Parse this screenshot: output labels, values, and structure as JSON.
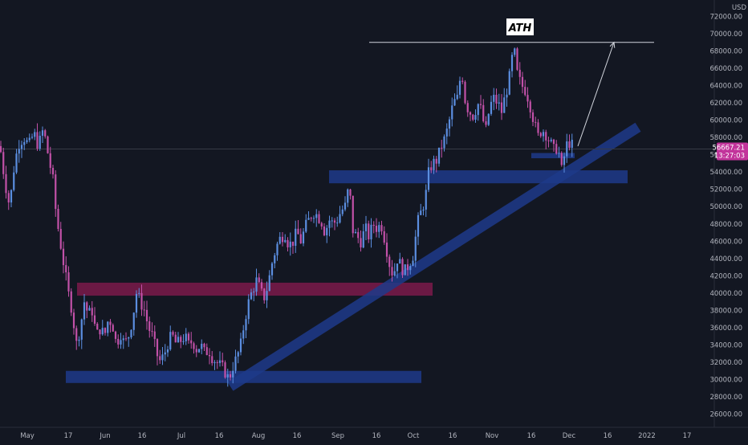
{
  "chart_data": {
    "type": "candlestick",
    "unit_label": "USD",
    "x_ticks": [
      "May",
      "17",
      "Jun",
      "16",
      "Jul",
      "16",
      "Aug",
      "16",
      "Sep",
      "16",
      "Oct",
      "16",
      "Nov",
      "16",
      "Dec",
      "16",
      "2022",
      "17"
    ],
    "y_ticks": [
      26000,
      28000,
      30000,
      32000,
      34000,
      36000,
      38000,
      40000,
      42000,
      44000,
      46000,
      48000,
      50000,
      52000,
      54000,
      56000,
      58000,
      60000,
      62000,
      64000,
      66000,
      68000,
      70000,
      72000
    ],
    "y_tick_labels": [
      "26000.00",
      "28000.00",
      "30000.00",
      "32000.00",
      "34000.00",
      "36000.00",
      "38000.00",
      "40000.00",
      "42000.00",
      "44000.00",
      "46000.00",
      "48000.00",
      "50000.00",
      "52000.00",
      "54000.00",
      "56000.00",
      "58000.00",
      "60000.00",
      "62000.00",
      "64000.00",
      "66000.00",
      "68000.00",
      "70000.00",
      "72000.00"
    ],
    "ylim": [
      24000,
      73500
    ],
    "current_price": 56667.21,
    "current_price_label": "56667.21",
    "countdown_label": "13:27:03",
    "annotation": "ATH",
    "close_path": [
      [
        0,
        57000
      ],
      [
        6,
        53000
      ],
      [
        12,
        50000
      ],
      [
        18,
        55000
      ],
      [
        24,
        57500
      ],
      [
        30,
        58000
      ],
      [
        36,
        57000
      ],
      [
        42,
        58500
      ],
      [
        48,
        57000
      ],
      [
        54,
        59000
      ],
      [
        60,
        56000
      ],
      [
        66,
        53000
      ],
      [
        70,
        49000
      ],
      [
        75,
        46000
      ],
      [
        80,
        43000
      ],
      [
        85,
        40000
      ],
      [
        90,
        38000
      ],
      [
        95,
        34000
      ],
      [
        100,
        36000
      ],
      [
        105,
        39000
      ],
      [
        110,
        37500
      ],
      [
        115,
        38000
      ],
      [
        120,
        35000
      ],
      [
        125,
        36000
      ],
      [
        130,
        35000
      ],
      [
        135,
        37000
      ],
      [
        140,
        36500
      ],
      [
        145,
        34000
      ],
      [
        150,
        35500
      ],
      [
        155,
        34000
      ],
      [
        160,
        35000
      ],
      [
        165,
        37000
      ],
      [
        170,
        40000
      ],
      [
        175,
        39000
      ],
      [
        180,
        38000
      ],
      [
        185,
        36000
      ],
      [
        190,
        35000
      ],
      [
        195,
        33000
      ],
      [
        200,
        32000
      ],
      [
        205,
        33000
      ],
      [
        210,
        34500
      ],
      [
        215,
        35000
      ],
      [
        220,
        34000
      ],
      [
        225,
        34500
      ],
      [
        230,
        35000
      ],
      [
        235,
        34000
      ],
      [
        240,
        34500
      ],
      [
        245,
        33500
      ],
      [
        250,
        34000
      ],
      [
        255,
        33000
      ],
      [
        260,
        33500
      ],
      [
        265,
        32500
      ],
      [
        270,
        32000
      ],
      [
        275,
        31500
      ],
      [
        280,
        31000
      ],
      [
        285,
        30000
      ],
      [
        290,
        31500
      ],
      [
        295,
        32500
      ],
      [
        300,
        34000
      ],
      [
        305,
        37000
      ],
      [
        310,
        39000
      ],
      [
        315,
        40500
      ],
      [
        320,
        41500
      ],
      [
        325,
        40000
      ],
      [
        330,
        39500
      ],
      [
        335,
        41500
      ],
      [
        340,
        44000
      ],
      [
        345,
        45500
      ],
      [
        350,
        46500
      ],
      [
        355,
        47000
      ],
      [
        360,
        45500
      ],
      [
        365,
        46000
      ],
      [
        370,
        47000
      ],
      [
        375,
        46000
      ],
      [
        380,
        47500
      ],
      [
        385,
        48500
      ],
      [
        390,
        49500
      ],
      [
        395,
        49000
      ],
      [
        400,
        48500
      ],
      [
        405,
        47000
      ],
      [
        410,
        48500
      ],
      [
        415,
        48000
      ],
      [
        420,
        48500
      ],
      [
        425,
        49500
      ],
      [
        430,
        50000
      ],
      [
        435,
        52500
      ],
      [
        440,
        47000
      ],
      [
        445,
        46500
      ],
      [
        450,
        46000
      ],
      [
        455,
        47500
      ],
      [
        460,
        46500
      ],
      [
        465,
        48000
      ],
      [
        470,
        47500
      ],
      [
        475,
        48000
      ],
      [
        480,
        46000
      ],
      [
        485,
        43500
      ],
      [
        490,
        42000
      ],
      [
        495,
        44000
      ],
      [
        500,
        43000
      ],
      [
        505,
        42500
      ],
      [
        510,
        43500
      ],
      [
        515,
        44500
      ],
      [
        520,
        48000
      ],
      [
        525,
        49500
      ],
      [
        530,
        51000
      ],
      [
        535,
        54500
      ],
      [
        540,
        55000
      ],
      [
        545,
        55500
      ],
      [
        550,
        57000
      ],
      [
        555,
        58000
      ],
      [
        560,
        60000
      ],
      [
        565,
        62000
      ],
      [
        570,
        62500
      ],
      [
        575,
        66000
      ],
      [
        580,
        62000
      ],
      [
        585,
        61000
      ],
      [
        590,
        60500
      ],
      [
        595,
        62000
      ],
      [
        600,
        61000
      ],
      [
        605,
        58500
      ],
      [
        610,
        61500
      ],
      [
        615,
        62500
      ],
      [
        620,
        62000
      ],
      [
        625,
        61000
      ],
      [
        630,
        63000
      ],
      [
        635,
        65000
      ],
      [
        640,
        68500
      ],
      [
        645,
        65000
      ],
      [
        650,
        64000
      ],
      [
        655,
        63500
      ],
      [
        660,
        62000
      ],
      [
        665,
        60000
      ],
      [
        670,
        58000
      ],
      [
        675,
        59000
      ],
      [
        680,
        58500
      ],
      [
        685,
        57500
      ],
      [
        690,
        56500
      ],
      [
        695,
        57000
      ],
      [
        700,
        54000
      ],
      [
        705,
        57000
      ],
      [
        710,
        57500
      ],
      [
        715,
        56667
      ]
    ],
    "zones": [
      {
        "kind": "support",
        "t_start": 82,
        "t_end": 525,
        "low": 29600,
        "high": 31000,
        "color": "#1e3a8a"
      },
      {
        "kind": "resistance",
        "t_start": 96,
        "t_end": 539,
        "low": 39700,
        "high": 41200,
        "color": "#7b1a4a"
      },
      {
        "kind": "resistance",
        "t_start": 410,
        "t_end": 782,
        "low": 52700,
        "high": 54200,
        "color": "#1e3a8a"
      },
      {
        "kind": "support",
        "t_start": 662,
        "t_end": 716,
        "low": 55600,
        "high": 56200,
        "color": "#1e3a8a"
      }
    ],
    "trendline": {
      "t_start": 287,
      "p_start": 29200,
      "t_end": 795,
      "p_end": 59200,
      "color": "#1e3a8a"
    },
    "ath_line": {
      "t_start": 460,
      "t_end": 815,
      "price": 69000,
      "color": "#d1d4dc"
    },
    "projection_arrow": {
      "t_start": 720,
      "p_start": 57000,
      "t_end": 765,
      "p_end": 69000,
      "color": "#d1d4dc"
    },
    "colors": {
      "background": "#131722",
      "candle_up": "#5b8ee0",
      "candle_down": "#c251a8",
      "text": "#b2b5be",
      "price_badge": "#c2349b",
      "crosshair": "#363a45"
    }
  }
}
